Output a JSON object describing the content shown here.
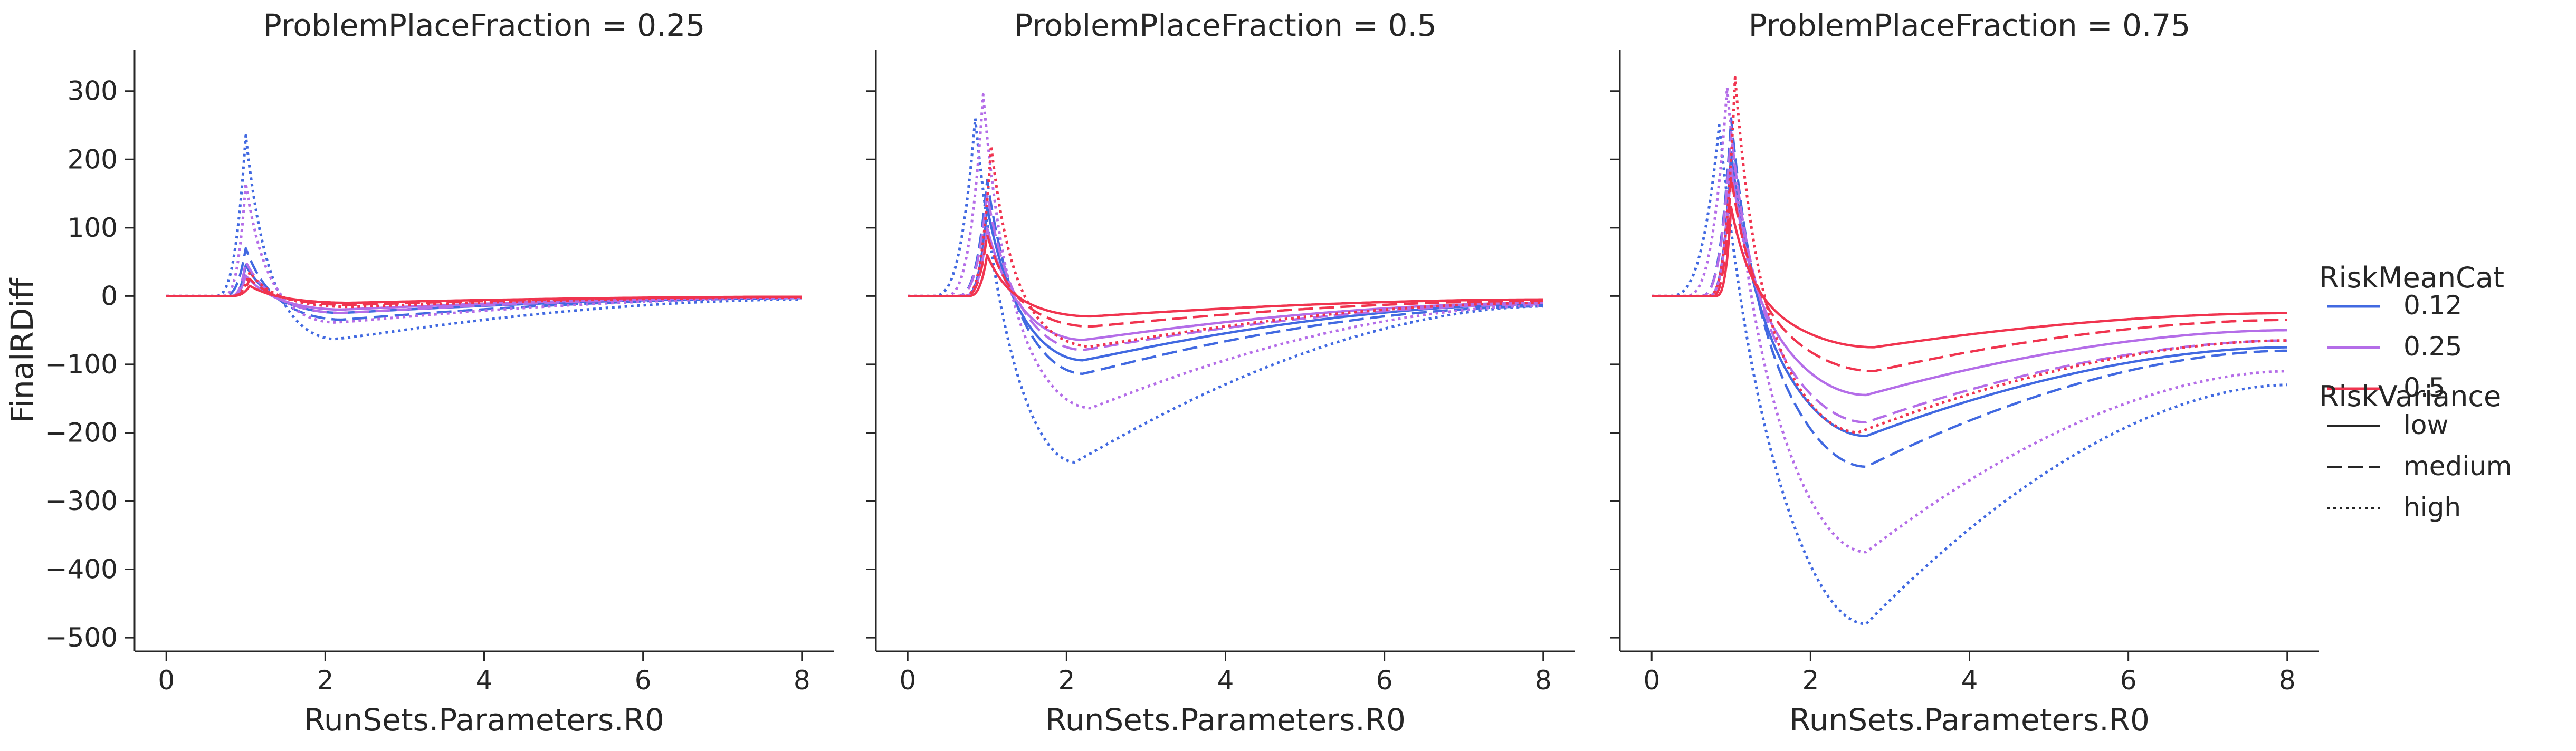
{
  "chart_data": {
    "type": "line",
    "ylabel": "FinalRDiff",
    "xlabel": "RunSets.Parameters.R0",
    "xlim": [
      -0.4,
      8.4
    ],
    "ylim": [
      -520,
      360
    ],
    "x_ticks": [
      0,
      2,
      4,
      6,
      8
    ],
    "y_ticks": [
      -500,
      -400,
      -300,
      -200,
      -100,
      0,
      100,
      200,
      300
    ],
    "grid": false,
    "legend": {
      "placement": "right",
      "hue_title": "RiskMeanCat",
      "hue_entries": [
        {
          "label": "0.12",
          "color": "#4169e1"
        },
        {
          "label": "0.25",
          "color": "#b46de8"
        },
        {
          "label": "0.5",
          "color": "#f0344f"
        }
      ],
      "style_title": "RiskVariance",
      "style_entries": [
        {
          "label": "low",
          "dash": "solid"
        },
        {
          "label": "medium",
          "dash": "dashed"
        },
        {
          "label": "high",
          "dash": "dotted"
        }
      ]
    },
    "panels": [
      {
        "title": "ProblemPlaceFraction = 0.25",
        "series": [
          {
            "risk_mean": "0.12",
            "variance": "low",
            "onset": 0.8,
            "peak_x": 1.0,
            "peak": 45,
            "trough_x": 2.2,
            "trough": -25,
            "end": -3
          },
          {
            "risk_mean": "0.12",
            "variance": "medium",
            "onset": 0.7,
            "peak_x": 1.0,
            "peak": 70,
            "trough_x": 2.2,
            "trough": -35,
            "end": -3
          },
          {
            "risk_mean": "0.12",
            "variance": "high",
            "onset": 0.6,
            "peak_x": 1.0,
            "peak": 235,
            "trough_x": 2.1,
            "trough": -65,
            "end": -5
          },
          {
            "risk_mean": "0.25",
            "variance": "low",
            "onset": 0.8,
            "peak_x": 1.0,
            "peak": 30,
            "trough_x": 2.2,
            "trough": -20,
            "end": -2
          },
          {
            "risk_mean": "0.25",
            "variance": "medium",
            "onset": 0.8,
            "peak_x": 1.0,
            "peak": 50,
            "trough_x": 2.2,
            "trough": -25,
            "end": -2
          },
          {
            "risk_mean": "0.25",
            "variance": "high",
            "onset": 0.7,
            "peak_x": 1.0,
            "peak": 165,
            "trough_x": 2.1,
            "trough": -40,
            "end": -3
          },
          {
            "risk_mean": "0.5",
            "variance": "low",
            "onset": 0.8,
            "peak_x": 1.05,
            "peak": 15,
            "trough_x": 2.3,
            "trough": -10,
            "end": -1
          },
          {
            "risk_mean": "0.5",
            "variance": "medium",
            "onset": 0.8,
            "peak_x": 1.05,
            "peak": 25,
            "trough_x": 2.3,
            "trough": -13,
            "end": -1
          },
          {
            "risk_mean": "0.5",
            "variance": "high",
            "onset": 0.8,
            "peak_x": 1.05,
            "peak": 35,
            "trough_x": 2.3,
            "trough": -16,
            "end": -2
          }
        ]
      },
      {
        "title": "ProblemPlaceFraction = 0.5",
        "series": [
          {
            "risk_mean": "0.12",
            "variance": "low",
            "onset": 0.7,
            "peak_x": 1.0,
            "peak": 130,
            "trough_x": 2.2,
            "trough": -95,
            "end": -12
          },
          {
            "risk_mean": "0.12",
            "variance": "medium",
            "onset": 0.6,
            "peak_x": 1.0,
            "peak": 170,
            "trough_x": 2.2,
            "trough": -115,
            "end": -15
          },
          {
            "risk_mean": "0.12",
            "variance": "high",
            "onset": 0.3,
            "peak_x": 0.85,
            "peak": 260,
            "trough_x": 2.1,
            "trough": -245,
            "end": -15
          },
          {
            "risk_mean": "0.25",
            "variance": "low",
            "onset": 0.7,
            "peak_x": 1.0,
            "peak": 100,
            "trough_x": 2.2,
            "trough": -65,
            "end": -10
          },
          {
            "risk_mean": "0.25",
            "variance": "medium",
            "onset": 0.6,
            "peak_x": 1.0,
            "peak": 150,
            "trough_x": 2.2,
            "trough": -80,
            "end": -12
          },
          {
            "risk_mean": "0.25",
            "variance": "high",
            "onset": 0.45,
            "peak_x": 0.95,
            "peak": 295,
            "trough_x": 2.3,
            "trough": -165,
            "end": -14
          },
          {
            "risk_mean": "0.5",
            "variance": "low",
            "onset": 0.75,
            "peak_x": 1.0,
            "peak": 60,
            "trough_x": 2.3,
            "trough": -30,
            "end": -5
          },
          {
            "risk_mean": "0.5",
            "variance": "medium",
            "onset": 0.7,
            "peak_x": 1.0,
            "peak": 90,
            "trough_x": 2.3,
            "trough": -45,
            "end": -7
          },
          {
            "risk_mean": "0.5",
            "variance": "high",
            "onset": 0.7,
            "peak_x": 1.05,
            "peak": 220,
            "trough_x": 2.3,
            "trough": -75,
            "end": -10
          }
        ]
      },
      {
        "title": "ProblemPlaceFraction = 0.75",
        "series": [
          {
            "risk_mean": "0.12",
            "variance": "low",
            "onset": 0.7,
            "peak_x": 1.0,
            "peak": 210,
            "trough_x": 2.7,
            "trough": -205,
            "end": -75
          },
          {
            "risk_mean": "0.12",
            "variance": "medium",
            "onset": 0.6,
            "peak_x": 1.0,
            "peak": 260,
            "trough_x": 2.7,
            "trough": -250,
            "end": -80
          },
          {
            "risk_mean": "0.12",
            "variance": "high",
            "onset": 0.2,
            "peak_x": 0.85,
            "peak": 250,
            "trough_x": 2.7,
            "trough": -480,
            "end": -130
          },
          {
            "risk_mean": "0.25",
            "variance": "low",
            "onset": 0.7,
            "peak_x": 1.0,
            "peak": 190,
            "trough_x": 2.7,
            "trough": -145,
            "end": -50
          },
          {
            "risk_mean": "0.25",
            "variance": "medium",
            "onset": 0.6,
            "peak_x": 1.0,
            "peak": 240,
            "trough_x": 2.7,
            "trough": -185,
            "end": -65
          },
          {
            "risk_mean": "0.25",
            "variance": "high",
            "onset": 0.4,
            "peak_x": 0.95,
            "peak": 305,
            "trough_x": 2.7,
            "trough": -375,
            "end": -110
          },
          {
            "risk_mean": "0.5",
            "variance": "low",
            "onset": 0.8,
            "peak_x": 1.0,
            "peak": 130,
            "trough_x": 2.8,
            "trough": -75,
            "end": -25
          },
          {
            "risk_mean": "0.5",
            "variance": "medium",
            "onset": 0.75,
            "peak_x": 1.0,
            "peak": 175,
            "trough_x": 2.8,
            "trough": -110,
            "end": -35
          },
          {
            "risk_mean": "0.5",
            "variance": "high",
            "onset": 0.7,
            "peak_x": 1.05,
            "peak": 320,
            "trough_x": 2.6,
            "trough": -200,
            "end": -65
          }
        ]
      }
    ]
  }
}
